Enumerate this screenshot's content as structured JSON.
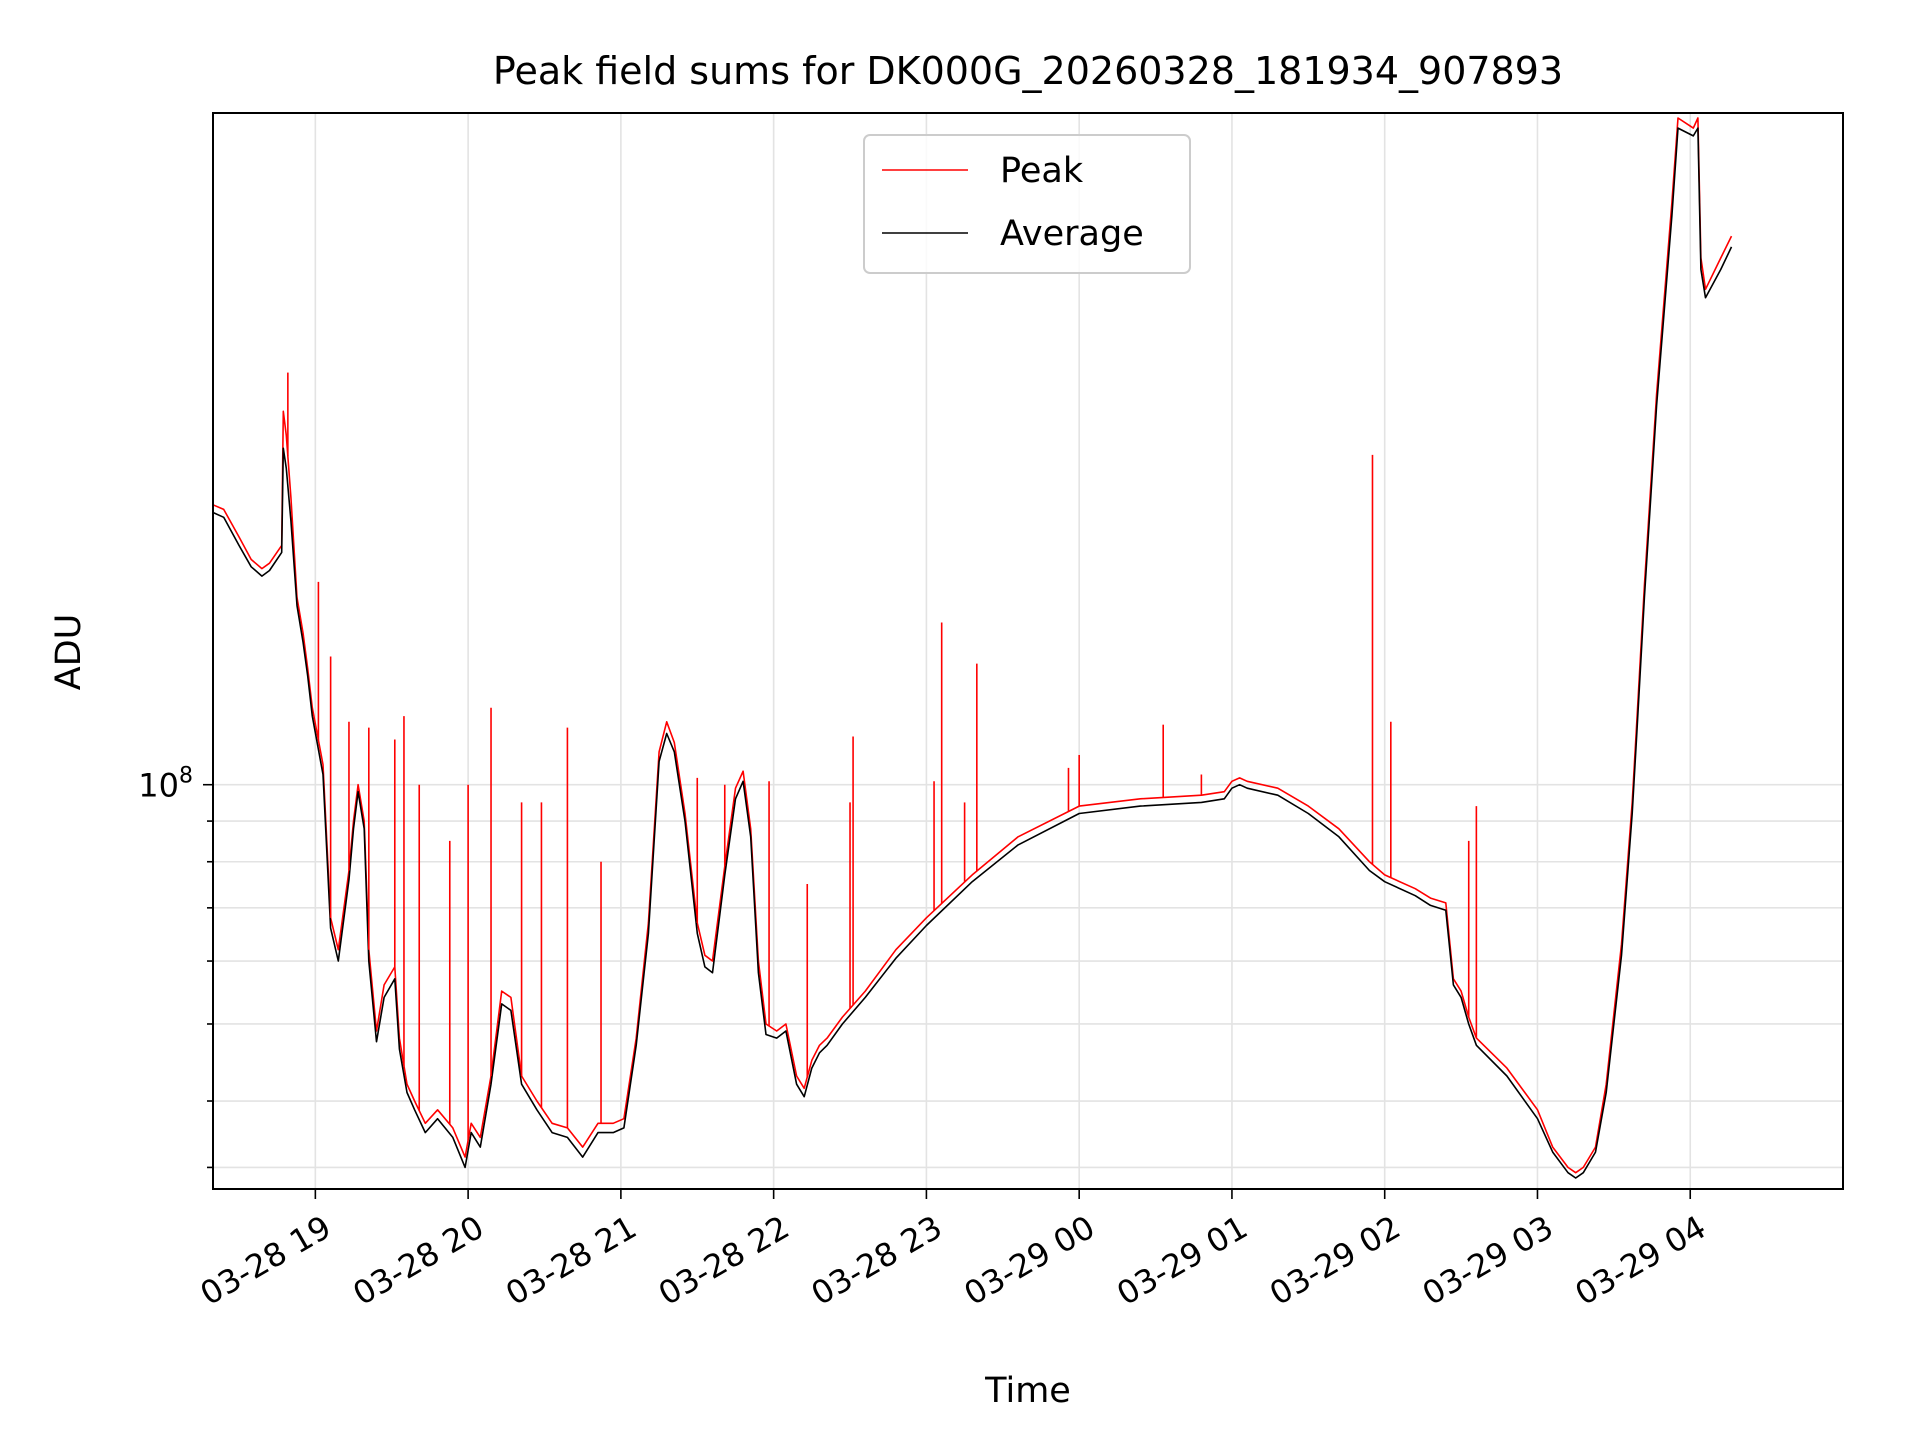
{
  "chart_data": {
    "type": "line",
    "title": "Peak field sums for DK000G_20260328_181934_907893",
    "xlabel": "Time",
    "ylabel": "ADU",
    "yscale": "log",
    "ylim": [
      31000000,
      700000000
    ],
    "xlim": [
      -0.67,
      10.0
    ],
    "x_unit": "hours since 2026-03-28 19:00",
    "grid": true,
    "legend_position": "upper center",
    "x_ticks": [
      {
        "value": 0,
        "label": "03-28 19"
      },
      {
        "value": 1,
        "label": "03-28 20"
      },
      {
        "value": 2,
        "label": "03-28 21"
      },
      {
        "value": 3,
        "label": "03-28 22"
      },
      {
        "value": 4,
        "label": "03-28 23"
      },
      {
        "value": 5,
        "label": "03-29 00"
      },
      {
        "value": 6,
        "label": "03-29 01"
      },
      {
        "value": 7,
        "label": "03-29 02"
      },
      {
        "value": 8,
        "label": "03-29 03"
      },
      {
        "value": 9,
        "label": "03-29 04"
      }
    ],
    "y_major_ticks": [
      {
        "value": 100000000,
        "label_base": "10",
        "label_exp": "8"
      }
    ],
    "y_minor_ticks": [
      33000000,
      40000000,
      50000000,
      60000000,
      70000000,
      80000000,
      90000000
    ],
    "series": [
      {
        "name": "Peak",
        "color": "#ff0000",
        "x": [
          -0.67,
          -0.6,
          -0.5,
          -0.42,
          -0.35,
          -0.3,
          -0.22,
          -0.21,
          -0.19,
          -0.16,
          -0.12,
          -0.08,
          -0.05,
          -0.02,
          0.05,
          0.1,
          0.15,
          0.22,
          0.25,
          0.28,
          0.32,
          0.35,
          0.4,
          0.45,
          0.52,
          0.55,
          0.6,
          0.65,
          0.72,
          0.8,
          0.9,
          0.98,
          1.02,
          1.08,
          1.15,
          1.22,
          1.28,
          1.35,
          1.45,
          1.55,
          1.65,
          1.75,
          1.85,
          1.95,
          2.02,
          2.1,
          2.18,
          2.25,
          2.3,
          2.35,
          2.42,
          2.5,
          2.55,
          2.6,
          2.68,
          2.75,
          2.8,
          2.85,
          2.9,
          2.95,
          3.02,
          3.08,
          3.15,
          3.2,
          3.25,
          3.3,
          3.35,
          3.45,
          3.6,
          3.8,
          4.0,
          4.3,
          4.6,
          5.0,
          5.4,
          5.8,
          5.95,
          6.0,
          6.05,
          6.1,
          6.3,
          6.5,
          6.7,
          6.9,
          7.0,
          7.2,
          7.3,
          7.4,
          7.45,
          7.5,
          7.55,
          7.6,
          7.8,
          8.0,
          8.1,
          8.2,
          8.25,
          8.3,
          8.38,
          8.45,
          8.55,
          8.62,
          8.65,
          8.7,
          8.78,
          8.88,
          8.92,
          9.02,
          9.05,
          9.07,
          9.1,
          9.2,
          9.27
        ],
        "y": [
          225000000,
          222000000,
          205000000,
          192000000,
          187000000,
          190000000,
          200000000,
          295000000,
          275000000,
          230000000,
          172000000,
          155000000,
          140000000,
          125000000,
          106000000,
          68000000,
          62000000,
          78000000,
          90000000,
          100000000,
          90000000,
          62000000,
          49000000,
          56000000,
          59000000,
          48000000,
          42000000,
          40000000,
          37500000,
          39000000,
          37000000,
          34000000,
          37500000,
          36000000,
          43000000,
          55000000,
          54000000,
          43000000,
          40000000,
          37500000,
          37000000,
          35000000,
          37500000,
          37500000,
          38000000,
          48000000,
          67000000,
          110000000,
          120000000,
          113000000,
          92000000,
          67000000,
          61000000,
          60000000,
          79000000,
          99000000,
          104000000,
          88000000,
          60000000,
          50000000,
          49000000,
          50000000,
          43000000,
          41500000,
          45000000,
          47000000,
          48000000,
          51000000,
          55000000,
          62000000,
          68000000,
          77000000,
          86000000,
          94000000,
          96000000,
          97000000,
          98000000,
          101000000,
          102000000,
          101000000,
          99000000,
          94000000,
          88000000,
          80000000,
          77000000,
          74000000,
          72000000,
          71000000,
          57000000,
          55000000,
          51000000,
          48000000,
          44000000,
          39000000,
          35000000,
          33000000,
          32500000,
          33000000,
          35000000,
          42000000,
          63000000,
          95000000,
          120000000,
          178000000,
          310000000,
          540000000,
          690000000,
          670000000,
          690000000,
          460000000,
          420000000,
          460000000,
          490000000
        ]
      },
      {
        "name": "Average",
        "color": "#000000",
        "x": [
          -0.67,
          -0.6,
          -0.5,
          -0.42,
          -0.35,
          -0.3,
          -0.22,
          -0.21,
          -0.19,
          -0.16,
          -0.12,
          -0.08,
          -0.05,
          -0.02,
          0.05,
          0.1,
          0.15,
          0.22,
          0.25,
          0.28,
          0.32,
          0.35,
          0.4,
          0.45,
          0.52,
          0.55,
          0.6,
          0.65,
          0.72,
          0.8,
          0.9,
          0.98,
          1.02,
          1.08,
          1.15,
          1.22,
          1.28,
          1.35,
          1.45,
          1.55,
          1.65,
          1.75,
          1.85,
          1.95,
          2.02,
          2.1,
          2.18,
          2.25,
          2.3,
          2.35,
          2.42,
          2.5,
          2.55,
          2.6,
          2.68,
          2.75,
          2.8,
          2.85,
          2.9,
          2.95,
          3.02,
          3.08,
          3.15,
          3.2,
          3.25,
          3.3,
          3.35,
          3.45,
          3.6,
          3.8,
          4.0,
          4.3,
          4.6,
          5.0,
          5.4,
          5.8,
          5.95,
          6.0,
          6.05,
          6.1,
          6.3,
          6.5,
          6.7,
          6.9,
          7.0,
          7.2,
          7.3,
          7.4,
          7.45,
          7.5,
          7.55,
          7.6,
          7.8,
          8.0,
          8.1,
          8.2,
          8.25,
          8.3,
          8.38,
          8.45,
          8.55,
          8.62,
          8.65,
          8.7,
          8.78,
          8.88,
          8.92,
          9.02,
          9.05,
          9.07,
          9.1,
          9.2,
          9.27
        ],
        "y": [
          220000000,
          217000000,
          200000000,
          188000000,
          183000000,
          186000000,
          196000000,
          265000000,
          250000000,
          215000000,
          168000000,
          151000000,
          137000000,
          122000000,
          103000000,
          66000000,
          60000000,
          76000000,
          88000000,
          98000000,
          88000000,
          60000000,
          47500000,
          54000000,
          57000000,
          46500000,
          41000000,
          39000000,
          36500000,
          38000000,
          36000000,
          33000000,
          36500000,
          35000000,
          42000000,
          53000000,
          52000000,
          42000000,
          39000000,
          36500000,
          36000000,
          34000000,
          36500000,
          36500000,
          37000000,
          47000000,
          65000000,
          107000000,
          116000000,
          110000000,
          90000000,
          65000000,
          59000000,
          58000000,
          77000000,
          96000000,
          101000000,
          86000000,
          58000000,
          48500000,
          48000000,
          49000000,
          42000000,
          40500000,
          44000000,
          46000000,
          47000000,
          50000000,
          54000000,
          60500000,
          66500000,
          75500000,
          84000000,
          92000000,
          94000000,
          95000000,
          96000000,
          99000000,
          100000000,
          99000000,
          97000000,
          92000000,
          86000000,
          78000000,
          75500000,
          72500000,
          70500000,
          69500000,
          56000000,
          54000000,
          50000000,
          47000000,
          43000000,
          38000000,
          34500000,
          32500000,
          32000000,
          32500000,
          34500000,
          41000000,
          61000000,
          92000000,
          116000000,
          172000000,
          300000000,
          520000000,
          670000000,
          655000000,
          670000000,
          445000000,
          410000000,
          445000000,
          475000000
        ]
      }
    ],
    "peak_spikes": [
      {
        "x": -0.18,
        "y": 330000000
      },
      {
        "x": 0.02,
        "y": 180000000
      },
      {
        "x": 0.1,
        "y": 145000000
      },
      {
        "x": 0.22,
        "y": 120000000
      },
      {
        "x": 0.35,
        "y": 118000000
      },
      {
        "x": 0.52,
        "y": 114000000
      },
      {
        "x": 0.58,
        "y": 122000000
      },
      {
        "x": 0.68,
        "y": 100000000
      },
      {
        "x": 0.88,
        "y": 85000000
      },
      {
        "x": 1.0,
        "y": 100000000
      },
      {
        "x": 1.15,
        "y": 125000000
      },
      {
        "x": 1.35,
        "y": 95000000
      },
      {
        "x": 1.48,
        "y": 95000000
      },
      {
        "x": 1.65,
        "y": 118000000
      },
      {
        "x": 1.87,
        "y": 80000000
      },
      {
        "x": 2.5,
        "y": 102000000
      },
      {
        "x": 2.68,
        "y": 100000000
      },
      {
        "x": 2.97,
        "y": 101000000
      },
      {
        "x": 3.22,
        "y": 75000000
      },
      {
        "x": 3.5,
        "y": 95000000
      },
      {
        "x": 3.52,
        "y": 115000000
      },
      {
        "x": 4.05,
        "y": 101000000
      },
      {
        "x": 4.1,
        "y": 160000000
      },
      {
        "x": 4.25,
        "y": 95000000
      },
      {
        "x": 4.33,
        "y": 142000000
      },
      {
        "x": 4.93,
        "y": 105000000
      },
      {
        "x": 5.0,
        "y": 109000000
      },
      {
        "x": 5.55,
        "y": 119000000
      },
      {
        "x": 5.8,
        "y": 103000000
      },
      {
        "x": 6.0,
        "y": 101000000
      },
      {
        "x": 6.92,
        "y": 260000000
      },
      {
        "x": 7.04,
        "y": 120000000
      },
      {
        "x": 7.55,
        "y": 85000000
      },
      {
        "x": 7.6,
        "y": 94000000
      }
    ]
  }
}
